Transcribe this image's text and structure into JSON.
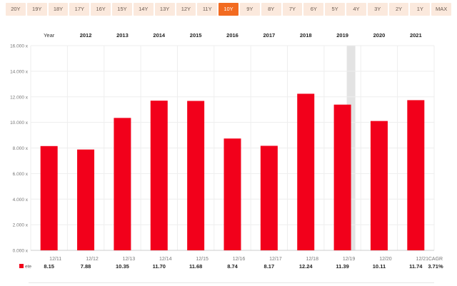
{
  "range_buttons": [
    "20Y",
    "19Y",
    "18Y",
    "17Y",
    "16Y",
    "15Y",
    "14Y",
    "13Y",
    "12Y",
    "11Y",
    "10Y",
    "9Y",
    "8Y",
    "7Y",
    "6Y",
    "5Y",
    "4Y",
    "3Y",
    "2Y",
    "1Y",
    "MAX"
  ],
  "range_active": "10Y",
  "colors": {
    "bar": "#f2001b",
    "accent": "#f26b21",
    "highlight": "#e3e3e3",
    "grid": "#eeeeee"
  },
  "chart_data": {
    "type": "bar",
    "header_label": "Year",
    "years": [
      "2012",
      "2013",
      "2014",
      "2015",
      "2016",
      "2017",
      "2018",
      "2019",
      "2020",
      "2021"
    ],
    "categories": [
      "12/11",
      "12/12",
      "12/13",
      "12/14",
      "12/15",
      "12/16",
      "12/17",
      "12/18",
      "12/19",
      "12/20",
      "12/21"
    ],
    "series": [
      {
        "name": "ete",
        "values": [
          8.15,
          7.88,
          10.35,
          11.7,
          11.68,
          8.74,
          8.17,
          12.24,
          11.39,
          10.11,
          11.74
        ]
      }
    ],
    "value_labels": [
      "8.15",
      "7.88",
      "10.35",
      "11.70",
      "11.68",
      "8.74",
      "8.17",
      "12.24",
      "11.39",
      "10.11",
      "11.74"
    ],
    "summary_header": "CAGR",
    "summary_value": "3.71%",
    "yticks": [
      "0.000 x",
      "2.000 x",
      "4.000 x",
      "6.000 x",
      "8.000 x",
      "10.000 x",
      "12.000 x",
      "14.000 x",
      "16.000 x"
    ],
    "ylim": [
      0,
      16
    ],
    "grid": true,
    "highlighted_category": "12/19"
  }
}
